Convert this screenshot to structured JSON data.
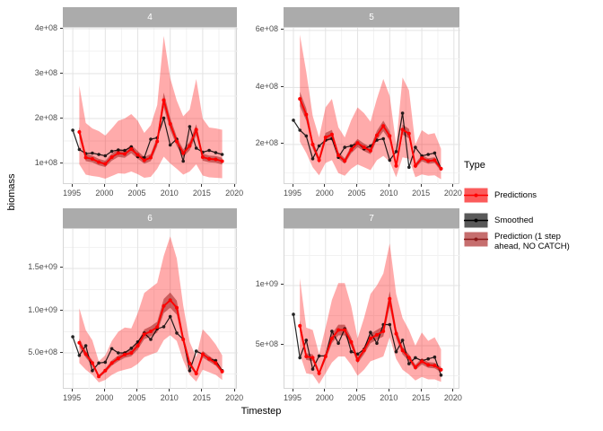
{
  "figure": {
    "ylabel": "biomass",
    "xlabel": "Timestep"
  },
  "colors": {
    "ribbon": "rgba(255,0,0,0.33)",
    "ribbon_inner": "rgba(139,0,0,0.45)",
    "predictions_line": "#FF0000",
    "smoothed_line": "#000000",
    "strip_bg": "#ABABAB",
    "strip_text": "#FFFFFF",
    "grid_major": "#E3E3E3",
    "grid_minor": "#F2F2F2",
    "panel_border": "#D6D6D6",
    "axis_text": "#4D4D4D",
    "tick": "#333333"
  },
  "legend": {
    "title": "Type",
    "items": [
      {
        "label": "Predictions",
        "fill": "#FB5B5B",
        "line": "#FF0000"
      },
      {
        "label": "Smoothed",
        "fill": "#595959",
        "line": "#000000"
      },
      {
        "label": "Prediction (1 step\n ahead, NO CATCH)",
        "fill": "#C66E6E",
        "line": "#8B1A1A"
      }
    ]
  },
  "chart_data": {
    "type": "line",
    "facet_variable": "panel",
    "x": [
      1995,
      1996,
      1997,
      1998,
      1999,
      2000,
      2001,
      2002,
      2003,
      2004,
      2005,
      2006,
      2007,
      2008,
      2009,
      2010,
      2011,
      2012,
      2013,
      2014,
      2015,
      2016,
      2017,
      2018
    ],
    "x_ticks": [
      1995,
      2000,
      2005,
      2010,
      2015,
      2020
    ],
    "x_tick_labels": [
      "1995",
      "2000",
      "2005",
      "2010",
      "2015",
      "2020"
    ],
    "x_minor": [
      1997.5,
      2002.5,
      2007.5,
      2012.5,
      2017.5
    ],
    "panels": [
      {
        "facet": "4",
        "xlim": [
          1993.6,
          2020.4
        ],
        "ylim": [
          52000000.0,
          402000000.0
        ],
        "y_ticks": [
          100000000.0,
          200000000.0,
          300000000.0,
          400000000.0
        ],
        "y_tick_labels": [
          "1e+08",
          "2e+08",
          "3e+08",
          "4e+08"
        ],
        "y_minor": [
          150000000.0,
          250000000.0,
          350000000.0
        ],
        "inner_frac": 0.07,
        "smoothed": [
          174000000.0,
          131000000.0,
          122000000.0,
          123000000.0,
          120000000.0,
          117000000.0,
          127000000.0,
          130000000.0,
          129000000.0,
          137000000.0,
          115000000.0,
          113000000.0,
          154000000.0,
          157000000.0,
          201000000.0,
          141000000.0,
          154000000.0,
          105000000.0,
          182000000.0,
          134000000.0,
          125000000.0,
          129000000.0,
          124000000.0,
          120000000.0
        ],
        "predictions": [
          null,
          170000000.0,
          113000000.0,
          110000000.0,
          103000000.0,
          99000000.0,
          114000000.0,
          123000000.0,
          121000000.0,
          132000000.0,
          119000000.0,
          107000000.0,
          113000000.0,
          149000000.0,
          241000000.0,
          188000000.0,
          149000000.0,
          123000000.0,
          139000000.0,
          175000000.0,
          114000000.0,
          110000000.0,
          109000000.0,
          105000000.0
        ],
        "ribbon_upper": [
          null,
          273000000.0,
          190000000.0,
          178000000.0,
          172000000.0,
          162000000.0,
          178000000.0,
          195000000.0,
          200000000.0,
          210000000.0,
          195000000.0,
          168000000.0,
          185000000.0,
          230000000.0,
          384000000.0,
          290000000.0,
          240000000.0,
          205000000.0,
          220000000.0,
          288000000.0,
          200000000.0,
          180000000.0,
          178000000.0,
          175000000.0
        ],
        "ribbon_lower": [
          null,
          98000000.0,
          75000000.0,
          72000000.0,
          70000000.0,
          66000000.0,
          72000000.0,
          78000000.0,
          77000000.0,
          82000000.0,
          76000000.0,
          68000000.0,
          70000000.0,
          88000000.0,
          115000000.0,
          100000000.0,
          88000000.0,
          75000000.0,
          82000000.0,
          98000000.0,
          73000000.0,
          69000000.0,
          68000000.0,
          67000000.0
        ]
      },
      {
        "facet": "5",
        "xlim": [
          1993.6,
          2021.0
        ],
        "ylim": [
          58000000.0,
          609000000.0
        ],
        "y_ticks": [
          200000000.0,
          400000000.0,
          600000000.0
        ],
        "y_tick_labels": [
          "2e+08",
          "4e+08",
          "6e+08"
        ],
        "y_minor": [
          100000000.0,
          300000000.0,
          500000000.0
        ],
        "inner_frac": 0.07,
        "smoothed": [
          285000000.0,
          250000000.0,
          230000000.0,
          150000000.0,
          195000000.0,
          215000000.0,
          220000000.0,
          155000000.0,
          190000000.0,
          195000000.0,
          205000000.0,
          185000000.0,
          195000000.0,
          215000000.0,
          220000000.0,
          145000000.0,
          175000000.0,
          310000000.0,
          120000000.0,
          190000000.0,
          160000000.0,
          165000000.0,
          170000000.0,
          115000000.0
        ],
        "predictions": [
          null,
          360000000.0,
          305000000.0,
          200000000.0,
          145000000.0,
          225000000.0,
          235000000.0,
          162000000.0,
          142000000.0,
          182000000.0,
          205000000.0,
          190000000.0,
          178000000.0,
          232000000.0,
          265000000.0,
          230000000.0,
          125000000.0,
          252000000.0,
          238000000.0,
          125000000.0,
          152000000.0,
          142000000.0,
          145000000.0,
          115000000.0
        ],
        "ribbon_upper": [
          null,
          585000000.0,
          455000000.0,
          300000000.0,
          225000000.0,
          330000000.0,
          360000000.0,
          260000000.0,
          225000000.0,
          285000000.0,
          330000000.0,
          310000000.0,
          280000000.0,
          360000000.0,
          430000000.0,
          370000000.0,
          200000000.0,
          435000000.0,
          390000000.0,
          200000000.0,
          250000000.0,
          235000000.0,
          240000000.0,
          185000000.0
        ],
        "ribbon_lower": [
          null,
          210000000.0,
          170000000.0,
          120000000.0,
          92000000.0,
          135000000.0,
          145000000.0,
          100000000.0,
          90000000.0,
          115000000.0,
          130000000.0,
          120000000.0,
          110000000.0,
          145000000.0,
          160000000.0,
          140000000.0,
          85000000.0,
          155000000.0,
          150000000.0,
          85000000.0,
          95000000.0,
          90000000.0,
          92000000.0,
          78000000.0
        ]
      },
      {
        "facet": "6",
        "xlim": [
          1993.6,
          2020.4
        ],
        "ylim": [
          64000000.0,
          1968000000.0
        ],
        "y_ticks": [
          500000000.0,
          1000000000.0,
          1500000000.0
        ],
        "y_tick_labels": [
          "5.0e+08",
          "1.0e+09",
          "1.5e+09"
        ],
        "y_minor": [
          250000000.0,
          750000000.0,
          1250000000.0,
          1750000000.0
        ],
        "inner_frac": 0.08,
        "smoothed": [
          690000000.0,
          470000000.0,
          585000000.0,
          290000000.0,
          380000000.0,
          390000000.0,
          550000000.0,
          500000000.0,
          500000000.0,
          555000000.0,
          630000000.0,
          735000000.0,
          660000000.0,
          785000000.0,
          810000000.0,
          930000000.0,
          735000000.0,
          660000000.0,
          290000000.0,
          520000000.0,
          485000000.0,
          430000000.0,
          410000000.0,
          290000000.0
        ],
        "predictions": [
          null,
          620000000.0,
          485000000.0,
          380000000.0,
          220000000.0,
          290000000.0,
          380000000.0,
          435000000.0,
          480000000.0,
          500000000.0,
          585000000.0,
          720000000.0,
          755000000.0,
          805000000.0,
          1055000000.0,
          1125000000.0,
          1035000000.0,
          660000000.0,
          375000000.0,
          255000000.0,
          485000000.0,
          430000000.0,
          380000000.0,
          280000000.0
        ],
        "ribbon_upper": [
          null,
          1030000000.0,
          770000000.0,
          650000000.0,
          400000000.0,
          470000000.0,
          640000000.0,
          750000000.0,
          800000000.0,
          790000000.0,
          970000000.0,
          1210000000.0,
          1270000000.0,
          1330000000.0,
          1650000000.0,
          1880000000.0,
          1620000000.0,
          1060000000.0,
          630000000.0,
          450000000.0,
          780000000.0,
          700000000.0,
          600000000.0,
          470000000.0
        ],
        "ribbon_lower": [
          null,
          380000000.0,
          300000000.0,
          240000000.0,
          150000000.0,
          180000000.0,
          240000000.0,
          280000000.0,
          300000000.0,
          320000000.0,
          370000000.0,
          450000000.0,
          480000000.0,
          510000000.0,
          650000000.0,
          710000000.0,
          640000000.0,
          410000000.0,
          240000000.0,
          160000000.0,
          300000000.0,
          270000000.0,
          240000000.0,
          180000000.0
        ]
      },
      {
        "facet": "7",
        "xlim": [
          1993.6,
          2021.0
        ],
        "ylim": [
          134000000.0,
          1470000000.0
        ],
        "y_ticks": [
          500000000.0,
          1000000000.0
        ],
        "y_tick_labels": [
          "5e+08",
          "1e+09"
        ],
        "y_minor": [
          250000000.0,
          750000000.0,
          1250000000.0
        ],
        "inner_frac": 0.07,
        "smoothed": [
          760000000.0,
          400000000.0,
          545000000.0,
          305000000.0,
          415000000.0,
          415000000.0,
          620000000.0,
          520000000.0,
          640000000.0,
          450000000.0,
          430000000.0,
          470000000.0,
          610000000.0,
          520000000.0,
          675000000.0,
          675000000.0,
          450000000.0,
          545000000.0,
          350000000.0,
          400000000.0,
          375000000.0,
          390000000.0,
          405000000.0,
          255000000.0
        ],
        "predictions": [
          null,
          665000000.0,
          410000000.0,
          400000000.0,
          270000000.0,
          410000000.0,
          560000000.0,
          630000000.0,
          630000000.0,
          530000000.0,
          380000000.0,
          460000000.0,
          560000000.0,
          590000000.0,
          620000000.0,
          890000000.0,
          600000000.0,
          460000000.0,
          400000000.0,
          320000000.0,
          370000000.0,
          340000000.0,
          335000000.0,
          300000000.0
        ],
        "ribbon_upper": [
          null,
          1060000000.0,
          650000000.0,
          630000000.0,
          430000000.0,
          650000000.0,
          880000000.0,
          1020000000.0,
          1020000000.0,
          830000000.0,
          560000000.0,
          730000000.0,
          930000000.0,
          1000000000.0,
          1100000000.0,
          1350000000.0,
          930000000.0,
          730000000.0,
          630000000.0,
          500000000.0,
          610000000.0,
          540000000.0,
          570000000.0,
          470000000.0
        ],
        "ribbon_lower": [
          null,
          430000000.0,
          270000000.0,
          260000000.0,
          180000000.0,
          270000000.0,
          360000000.0,
          410000000.0,
          410000000.0,
          340000000.0,
          250000000.0,
          300000000.0,
          370000000.0,
          390000000.0,
          410000000.0,
          570000000.0,
          390000000.0,
          300000000.0,
          260000000.0,
          210000000.0,
          240000000.0,
          220000000.0,
          220000000.0,
          200000000.0
        ]
      }
    ]
  }
}
